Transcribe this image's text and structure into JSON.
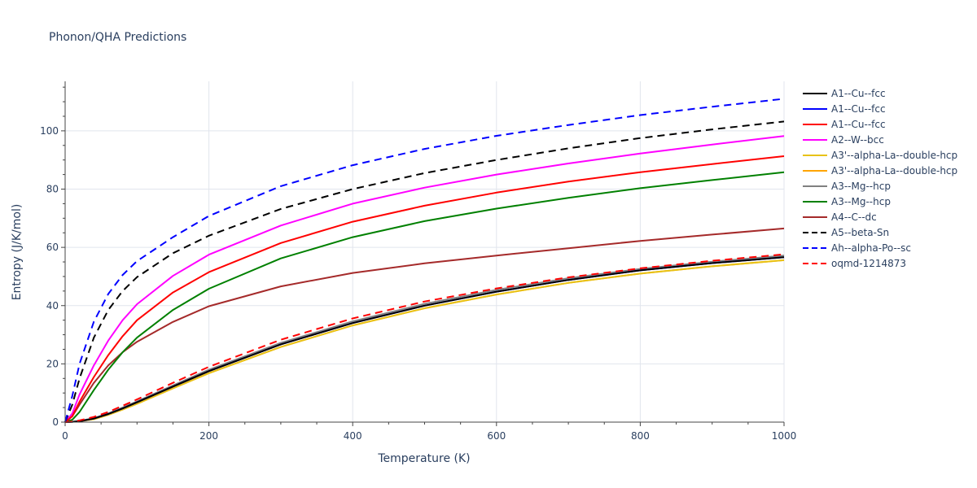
{
  "chart_data": {
    "type": "line",
    "title": "Phonon/QHA Predictions",
    "xlabel": "Temperature (K)",
    "ylabel": "Entropy (J/K/mol)",
    "xlim": [
      0,
      1000
    ],
    "ylim": [
      0,
      117
    ],
    "xticks": [
      0,
      200,
      400,
      600,
      800,
      1000
    ],
    "yticks": [
      0,
      20,
      40,
      60,
      80,
      100
    ],
    "xtick_labels": [
      "0",
      "200",
      "400",
      "600",
      "800",
      "1000"
    ],
    "ytick_labels": [
      "0",
      "20",
      "40",
      "60",
      "80",
      "100"
    ],
    "grid": true,
    "legend_position": "right",
    "x": [
      0,
      10,
      20,
      40,
      60,
      80,
      100,
      150,
      200,
      300,
      400,
      500,
      600,
      700,
      800,
      900,
      1000
    ],
    "series": [
      {
        "name": "A1--Cu--fcc",
        "color": "#000000",
        "dash": "solid",
        "values": [
          0,
          0.1,
          0.3,
          1.2,
          2.8,
          4.7,
          6.8,
          12.2,
          17.5,
          26.7,
          34.0,
          40.0,
          44.8,
          48.8,
          52.1,
          54.6,
          56.6
        ]
      },
      {
        "name": "A1--Cu--fcc",
        "color": "#0000ff",
        "dash": "solid",
        "values": [
          0,
          0.1,
          0.3,
          1.2,
          2.8,
          4.7,
          6.8,
          12.2,
          17.5,
          26.7,
          34.0,
          40.0,
          44.8,
          48.8,
          52.1,
          54.6,
          56.6
        ]
      },
      {
        "name": "A1--Cu--fcc",
        "color": "#ff0000",
        "dash": "solid",
        "values": [
          0,
          2.0,
          7.0,
          15.5,
          23.0,
          29.5,
          35.0,
          44.5,
          51.5,
          61.5,
          68.8,
          74.3,
          78.8,
          82.6,
          85.8,
          88.6,
          91.3
        ]
      },
      {
        "name": "A2--W--bcc",
        "color": "#ff00ff",
        "dash": "solid",
        "values": [
          0,
          3.0,
          9.5,
          19.5,
          28.0,
          35.0,
          40.5,
          50.2,
          57.5,
          67.5,
          75.0,
          80.5,
          85.0,
          88.8,
          92.2,
          95.3,
          98.2
        ]
      },
      {
        "name": "A3'--alpha-La--double-hcp",
        "color": "#e8c217",
        "dash": "solid",
        "values": [
          0,
          0.1,
          0.3,
          1.0,
          2.5,
          4.3,
          6.3,
          11.6,
          16.8,
          25.8,
          33.2,
          39.1,
          43.8,
          47.8,
          51.0,
          53.5,
          55.6
        ]
      },
      {
        "name": "A3'--alpha-La--double-hcp",
        "color": "#ffa500",
        "dash": "solid",
        "values": [
          0,
          0.1,
          0.3,
          1.0,
          2.5,
          4.3,
          6.3,
          11.6,
          16.8,
          25.8,
          33.2,
          39.1,
          43.8,
          47.8,
          51.0,
          53.5,
          55.6
        ]
      },
      {
        "name": "A3--Mg--hcp",
        "color": "#808080",
        "dash": "solid",
        "values": [
          0,
          0.1,
          0.4,
          1.4,
          3.0,
          5.0,
          7.1,
          12.6,
          18.0,
          27.2,
          34.6,
          40.6,
          45.4,
          49.4,
          52.6,
          55.1,
          57.2
        ]
      },
      {
        "name": "A3--Mg--hcp",
        "color": "#008000",
        "dash": "solid",
        "values": [
          0,
          0.8,
          3.5,
          11.0,
          18.0,
          24.0,
          29.0,
          38.5,
          45.8,
          56.2,
          63.5,
          69.0,
          73.3,
          77.0,
          80.3,
          83.1,
          85.8
        ]
      },
      {
        "name": "A4--C--dc",
        "color": "#a52a2a",
        "dash": "solid",
        "values": [
          0,
          2.0,
          6.0,
          13.5,
          19.5,
          24.0,
          27.6,
          34.4,
          39.8,
          46.6,
          51.2,
          54.5,
          57.2,
          59.7,
          62.2,
          64.4,
          66.5
        ]
      },
      {
        "name": "A5--beta-Sn",
        "color": "#000000",
        "dash": "dash",
        "values": [
          0,
          6.0,
          15.0,
          29.0,
          38.5,
          45.0,
          49.8,
          58.0,
          64.0,
          73.2,
          80.0,
          85.5,
          90.0,
          94.0,
          97.5,
          100.5,
          103.2
        ]
      },
      {
        "name": "Ah--alpha-Po--sc",
        "color": "#0000ff",
        "dash": "dash",
        "values": [
          0,
          9.0,
          20.0,
          34.5,
          44.0,
          50.5,
          55.3,
          63.5,
          70.8,
          81.0,
          88.2,
          93.8,
          98.3,
          102.0,
          105.4,
          108.3,
          111.0
        ]
      },
      {
        "name": "oqmd-1214873",
        "color": "#ff0000",
        "dash": "dash",
        "values": [
          0,
          0.2,
          0.6,
          1.8,
          3.5,
          5.6,
          7.8,
          13.5,
          19.0,
          28.3,
          35.6,
          41.4,
          45.9,
          49.7,
          52.8,
          55.4,
          57.6
        ]
      }
    ]
  }
}
